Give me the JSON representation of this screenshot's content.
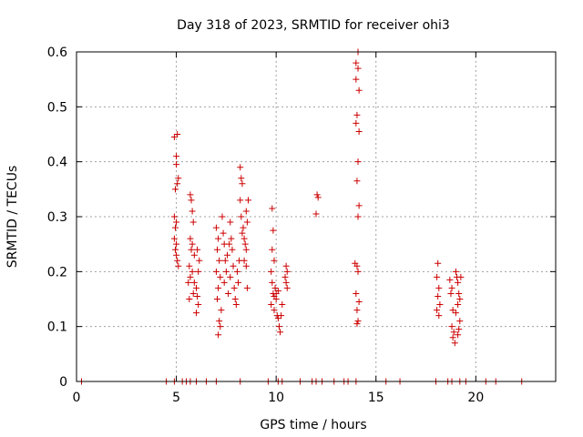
{
  "chart_data": {
    "type": "scatter",
    "title": "Day 318 of 2023, SRMTID for receiver ohi3",
    "xlabel": "GPS time / hours",
    "ylabel": "SRMTID / TECUs",
    "xlim": [
      0,
      24
    ],
    "ylim": [
      0,
      0.6
    ],
    "xticks": [
      0,
      5,
      10,
      15,
      20
    ],
    "yticks": [
      0,
      0.1,
      0.2,
      0.3,
      0.4,
      0.5,
      0.6
    ],
    "xtick_labels": [
      "0",
      "5",
      "10",
      "15",
      "20"
    ],
    "ytick_labels": [
      "0",
      "0.1",
      "0.2",
      "0.3",
      "0.4",
      "0.5",
      "0.6"
    ],
    "grid": true,
    "marker": "plus",
    "color": "#cc0000",
    "series": [
      {
        "name": "SRMTID",
        "points": [
          [
            0.25,
            0
          ],
          [
            4.5,
            0
          ],
          [
            4.9,
            0
          ],
          [
            5.3,
            0
          ],
          [
            5.5,
            0
          ],
          [
            5.7,
            0
          ],
          [
            6.0,
            0
          ],
          [
            6.5,
            0
          ],
          [
            7.0,
            0
          ],
          [
            8.2,
            0
          ],
          [
            9.6,
            0
          ],
          [
            10.1,
            0
          ],
          [
            10.3,
            0
          ],
          [
            11.2,
            0
          ],
          [
            11.8,
            0
          ],
          [
            12.0,
            0
          ],
          [
            12.3,
            0
          ],
          [
            12.9,
            0
          ],
          [
            13.4,
            0
          ],
          [
            13.6,
            0
          ],
          [
            14.0,
            0
          ],
          [
            15.5,
            0
          ],
          [
            16.2,
            0
          ],
          [
            18.0,
            0
          ],
          [
            18.6,
            0
          ],
          [
            18.8,
            0
          ],
          [
            19.2,
            0
          ],
          [
            19.5,
            0
          ],
          [
            20.5,
            0
          ],
          [
            21.0,
            0
          ],
          [
            22.3,
            0
          ],
          [
            4.9,
            0.445
          ],
          [
            5.05,
            0.45
          ],
          [
            5.0,
            0.41
          ],
          [
            5.0,
            0.395
          ],
          [
            4.95,
            0.35
          ],
          [
            5.05,
            0.36
          ],
          [
            5.1,
            0.37
          ],
          [
            4.9,
            0.3
          ],
          [
            5.0,
            0.29
          ],
          [
            4.95,
            0.28
          ],
          [
            4.9,
            0.26
          ],
          [
            5.0,
            0.25
          ],
          [
            4.95,
            0.24
          ],
          [
            5.0,
            0.23
          ],
          [
            5.05,
            0.22
          ],
          [
            5.1,
            0.21
          ],
          [
            5.7,
            0.34
          ],
          [
            5.75,
            0.33
          ],
          [
            5.8,
            0.31
          ],
          [
            5.85,
            0.29
          ],
          [
            5.7,
            0.26
          ],
          [
            5.8,
            0.25
          ],
          [
            5.75,
            0.24
          ],
          [
            5.9,
            0.23
          ],
          [
            5.65,
            0.21
          ],
          [
            5.8,
            0.2
          ],
          [
            5.7,
            0.19
          ],
          [
            5.9,
            0.18
          ],
          [
            6.0,
            0.17
          ],
          [
            5.85,
            0.16
          ],
          [
            6.05,
            0.155
          ],
          [
            6.1,
            0.14
          ],
          [
            6.0,
            0.125
          ],
          [
            6.1,
            0.2
          ],
          [
            6.15,
            0.22
          ],
          [
            6.05,
            0.24
          ],
          [
            5.6,
            0.18
          ],
          [
            5.65,
            0.15
          ],
          [
            7.0,
            0.28
          ],
          [
            7.1,
            0.26
          ],
          [
            7.05,
            0.24
          ],
          [
            7.15,
            0.22
          ],
          [
            7.0,
            0.2
          ],
          [
            7.2,
            0.19
          ],
          [
            7.1,
            0.17
          ],
          [
            7.05,
            0.15
          ],
          [
            7.25,
            0.13
          ],
          [
            7.15,
            0.11
          ],
          [
            7.2,
            0.1
          ],
          [
            7.1,
            0.085
          ],
          [
            7.3,
            0.3
          ],
          [
            7.35,
            0.27
          ],
          [
            7.4,
            0.25
          ],
          [
            7.45,
            0.22
          ],
          [
            7.5,
            0.2
          ],
          [
            7.4,
            0.18
          ],
          [
            7.6,
            0.16
          ],
          [
            7.55,
            0.23
          ],
          [
            7.65,
            0.25
          ],
          [
            7.7,
            0.29
          ],
          [
            7.75,
            0.26
          ],
          [
            7.8,
            0.24
          ],
          [
            7.85,
            0.21
          ],
          [
            7.7,
            0.19
          ],
          [
            7.9,
            0.17
          ],
          [
            7.95,
            0.15
          ],
          [
            8.0,
            0.14
          ],
          [
            8.1,
            0.18
          ],
          [
            8.05,
            0.2
          ],
          [
            8.15,
            0.22
          ],
          [
            8.2,
            0.39
          ],
          [
            8.25,
            0.37
          ],
          [
            8.3,
            0.36
          ],
          [
            8.2,
            0.33
          ],
          [
            8.25,
            0.3
          ],
          [
            8.35,
            0.28
          ],
          [
            8.3,
            0.27
          ],
          [
            8.4,
            0.26
          ],
          [
            8.45,
            0.25
          ],
          [
            8.5,
            0.24
          ],
          [
            8.4,
            0.22
          ],
          [
            8.5,
            0.21
          ],
          [
            8.55,
            0.29
          ],
          [
            8.5,
            0.31
          ],
          [
            8.6,
            0.33
          ],
          [
            8.55,
            0.17
          ],
          [
            9.8,
            0.315
          ],
          [
            9.85,
            0.275
          ],
          [
            9.8,
            0.24
          ],
          [
            9.9,
            0.22
          ],
          [
            9.75,
            0.2
          ],
          [
            9.8,
            0.18
          ],
          [
            9.95,
            0.17
          ],
          [
            9.85,
            0.16
          ],
          [
            9.9,
            0.155
          ],
          [
            10.0,
            0.15
          ],
          [
            9.75,
            0.14
          ],
          [
            9.9,
            0.13
          ],
          [
            10.05,
            0.12
          ],
          [
            10.1,
            0.115
          ],
          [
            10.15,
            0.1
          ],
          [
            10.2,
            0.09
          ],
          [
            10.3,
            0.14
          ],
          [
            10.25,
            0.12
          ],
          [
            10.1,
            0.165
          ],
          [
            10.0,
            0.16
          ],
          [
            10.5,
            0.21
          ],
          [
            10.55,
            0.2
          ],
          [
            10.45,
            0.19
          ],
          [
            10.5,
            0.18
          ],
          [
            10.55,
            0.17
          ],
          [
            12.05,
            0.34
          ],
          [
            12.1,
            0.335
          ],
          [
            12.0,
            0.305
          ],
          [
            14.0,
            0.58
          ],
          [
            14.1,
            0.6
          ],
          [
            14.1,
            0.57
          ],
          [
            14.0,
            0.55
          ],
          [
            14.15,
            0.53
          ],
          [
            14.05,
            0.485
          ],
          [
            14.0,
            0.47
          ],
          [
            14.15,
            0.455
          ],
          [
            14.1,
            0.4
          ],
          [
            14.05,
            0.365
          ],
          [
            14.15,
            0.32
          ],
          [
            14.1,
            0.3
          ],
          [
            13.95,
            0.215
          ],
          [
            14.05,
            0.21
          ],
          [
            14.1,
            0.2
          ],
          [
            14.0,
            0.16
          ],
          [
            14.15,
            0.145
          ],
          [
            14.05,
            0.13
          ],
          [
            14.1,
            0.11
          ],
          [
            14.05,
            0.105
          ],
          [
            18.1,
            0.215
          ],
          [
            18.05,
            0.19
          ],
          [
            18.15,
            0.17
          ],
          [
            18.1,
            0.155
          ],
          [
            18.2,
            0.14
          ],
          [
            18.05,
            0.13
          ],
          [
            18.15,
            0.12
          ],
          [
            18.7,
            0.185
          ],
          [
            18.8,
            0.17
          ],
          [
            18.75,
            0.16
          ],
          [
            18.85,
            0.13
          ],
          [
            18.8,
            0.1
          ],
          [
            18.9,
            0.09
          ],
          [
            18.85,
            0.08
          ],
          [
            18.95,
            0.07
          ],
          [
            19.0,
            0.2
          ],
          [
            19.05,
            0.19
          ],
          [
            19.1,
            0.18
          ],
          [
            19.15,
            0.16
          ],
          [
            19.2,
            0.15
          ],
          [
            19.1,
            0.14
          ],
          [
            19.0,
            0.125
          ],
          [
            19.2,
            0.11
          ],
          [
            19.15,
            0.095
          ],
          [
            19.25,
            0.19
          ],
          [
            19.1,
            0.085
          ]
        ]
      }
    ]
  }
}
